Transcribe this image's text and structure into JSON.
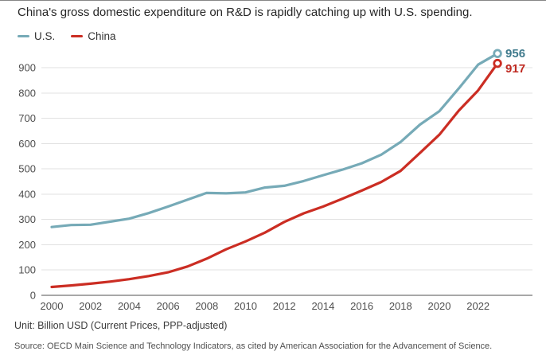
{
  "page": {
    "title": "China's gross domestic expenditure on R&D is rapidly catching up with U.S. spending.",
    "unit_note": "Unit: Billion USD (Current Prices, PPP-adjusted)",
    "source": "Source: OECD Main Science and Technology Indicators, as cited by American Association for the Advancement of Science."
  },
  "legend": [
    {
      "label": "U.S.",
      "color": "#76aab7"
    },
    {
      "label": "China",
      "color": "#cb2d23"
    }
  ],
  "chart_data": {
    "type": "line",
    "title": "China's gross domestic expenditure on R&D is rapidly catching up with U.S. spending.",
    "xlabel": "",
    "ylabel": "Billion USD (Current Prices, PPP-adjusted)",
    "x": [
      2000,
      2001,
      2002,
      2003,
      2004,
      2005,
      2006,
      2007,
      2008,
      2009,
      2010,
      2011,
      2012,
      2013,
      2014,
      2015,
      2016,
      2017,
      2018,
      2019,
      2020,
      2021,
      2022,
      2023
    ],
    "series": [
      {
        "name": "U.S.",
        "color": "#76aab7",
        "label_color": "#3f7a8c",
        "end_label": "956",
        "end_label_dy": 5,
        "values": [
          270,
          278,
          279,
          291,
          303,
          325,
          351,
          378,
          405,
          403,
          407,
          426,
          433,
          452,
          475,
          497,
          522,
          556,
          606,
          675,
          728,
          818,
          912,
          956
        ]
      },
      {
        "name": "China",
        "color": "#cb2d23",
        "label_color": "#bf2a21",
        "end_label": "917",
        "end_label_dy": 11.5,
        "values": [
          33,
          39,
          46,
          54,
          64,
          76,
          91,
          114,
          145,
          182,
          213,
          248,
          290,
          324,
          351,
          382,
          414,
          448,
          492,
          563,
          635,
          730,
          810,
          917
        ]
      }
    ],
    "xticks": [
      2000,
      2002,
      2004,
      2006,
      2008,
      2010,
      2012,
      2014,
      2016,
      2018,
      2020,
      2022
    ],
    "yticks": [
      0,
      100,
      200,
      300,
      400,
      500,
      600,
      700,
      800,
      900
    ],
    "xlim": [
      2000,
      2023
    ],
    "ylim": [
      0,
      980
    ],
    "grid": true,
    "legend_position": "top-left",
    "grid_color": "#e1e1e1",
    "axis_color": "#a8a8a8",
    "tick_label_color": "#4e4e4e"
  }
}
